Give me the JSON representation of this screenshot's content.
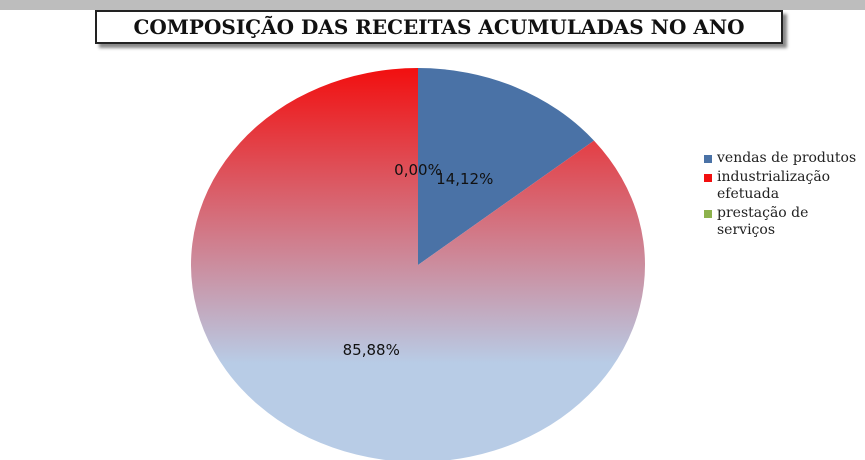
{
  "chart_data": {
    "type": "pie",
    "title": "COMPOSIÇÃO DAS RECEITAS ACUMULADAS NO ANO",
    "categories": [
      "vendas de produtos",
      "industrialização efetuada",
      "prestação de serviços"
    ],
    "values": [
      14.12,
      85.88,
      0.0
    ],
    "value_labels": [
      "14,12%",
      "85,88%",
      "0,00%"
    ],
    "colors": [
      "#4a72a6",
      "#f20f0f",
      "#8db24d"
    ],
    "legend": "right"
  }
}
